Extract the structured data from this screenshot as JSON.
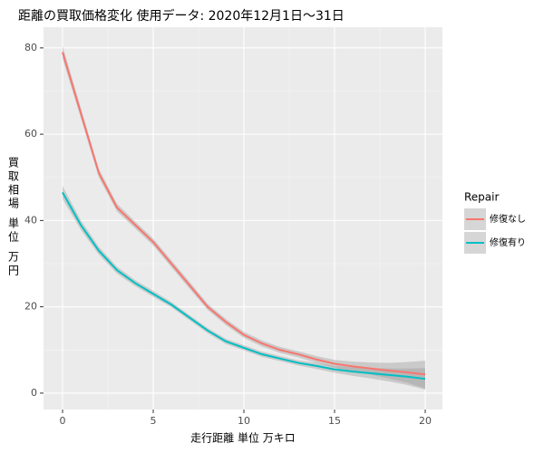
{
  "chart_data": {
    "type": "line",
    "title": "距離の買取価格変化 使用データ: 2020年12月1日～31日",
    "x_label": "走行距離 単位 万キロ",
    "y_label": "買取相場 単位 万円",
    "legend_title": "Repair",
    "x": [
      0,
      1,
      2,
      3,
      4,
      5,
      6,
      7,
      8,
      9,
      10,
      11,
      12,
      13,
      14,
      15,
      16,
      17,
      18,
      19,
      20
    ],
    "series": [
      {
        "name": "修復なし",
        "color": "#F8766D",
        "values": [
          79,
          65,
          51,
          43,
          39,
          35,
          30,
          25,
          20,
          16.5,
          13.5,
          11.5,
          10,
          9,
          7.8,
          6.8,
          6.2,
          5.7,
          5.2,
          4.8,
          4.3
        ],
        "lower": [
          77.5,
          63.8,
          50,
          42.1,
          38.2,
          34.2,
          29.2,
          24.2,
          19.3,
          15.8,
          12.8,
          10.8,
          9.3,
          8.3,
          7,
          5.9,
          5.1,
          4.3,
          3.4,
          2.4,
          1.1
        ],
        "upper": [
          80.5,
          66.2,
          52,
          43.9,
          39.8,
          35.8,
          30.8,
          25.8,
          20.7,
          17.2,
          14.2,
          12.2,
          10.7,
          9.7,
          8.6,
          7.7,
          7.3,
          7.1,
          7,
          7.2,
          7.5
        ]
      },
      {
        "name": "修復有り",
        "color": "#00BFC4",
        "values": [
          46.5,
          39,
          33,
          28.5,
          25.5,
          23,
          20.5,
          17.5,
          14.5,
          12,
          10.5,
          9,
          8,
          7,
          6.3,
          5.5,
          5,
          4.6,
          4.2,
          3.8,
          3.3
        ],
        "lower": [
          45,
          37.9,
          32.1,
          27.7,
          24.8,
          22.3,
          19.9,
          16.9,
          13.9,
          11.4,
          9.9,
          8.4,
          7.4,
          6.4,
          5.6,
          4.7,
          4,
          3.4,
          2.7,
          1.9,
          0.8
        ],
        "upper": [
          48,
          40.1,
          33.9,
          29.3,
          26.2,
          23.7,
          21.1,
          18.1,
          15.1,
          12.6,
          11.1,
          9.6,
          8.6,
          7.6,
          7,
          6.3,
          6,
          5.8,
          5.7,
          5.7,
          5.8
        ]
      }
    ],
    "xlim": [
      -1.05,
      20.95
    ],
    "ylim": [
      -3.8,
      84.8
    ],
    "xticks": [
      0,
      5,
      10,
      15,
      20
    ],
    "yticks": [
      0,
      20,
      40,
      60,
      80
    ],
    "grid": true,
    "legend_position": "right",
    "band_color": "#999999"
  }
}
